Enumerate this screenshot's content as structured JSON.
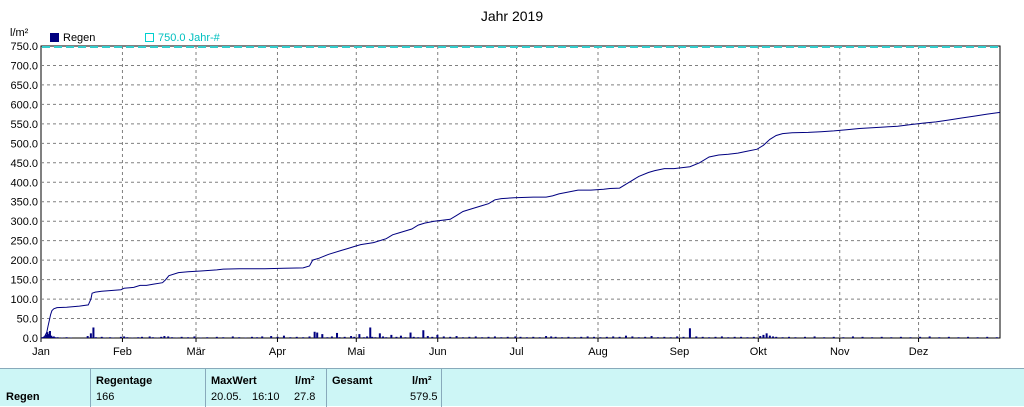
{
  "chart_data": {
    "type": "bar+line",
    "title": "Jahr 2019",
    "ylabel": "l/m²",
    "ylim": [
      0,
      750
    ],
    "yticks": [
      "0.0",
      "50.0",
      "100.0",
      "150.0",
      "200.0",
      "250.0",
      "300.0",
      "350.0",
      "400.0",
      "450.0",
      "500.0",
      "550.0",
      "600.0",
      "650.0",
      "700.0",
      "750.0"
    ],
    "xlabels": [
      "Jan",
      "Feb",
      "Mär",
      "Apr",
      "Mai",
      "Jun",
      "Jul",
      "Aug",
      "Sep",
      "Okt",
      "Nov",
      "Dez"
    ],
    "month_lengths": [
      31,
      28,
      31,
      30,
      31,
      30,
      31,
      31,
      30,
      31,
      30,
      31
    ],
    "grid": true,
    "legend": [
      {
        "name": "Regen",
        "color": "#000080"
      },
      {
        "name": "750.0 Jahr-#",
        "color": "#00d0d0"
      }
    ],
    "reference_line": {
      "value": 750,
      "color": "#33cccc"
    },
    "cumulative": [
      [
        0,
        0
      ],
      [
        5,
        2
      ],
      [
        9,
        15
      ],
      [
        11,
        30
      ],
      [
        13,
        45
      ],
      [
        15,
        60
      ],
      [
        17,
        70
      ],
      [
        20,
        75
      ],
      [
        25,
        78
      ],
      [
        40,
        79
      ],
      [
        60,
        82
      ],
      [
        74,
        85
      ],
      [
        78,
        100
      ],
      [
        80,
        115
      ],
      [
        85,
        118
      ],
      [
        95,
        120
      ],
      [
        110,
        122
      ],
      [
        125,
        124
      ],
      [
        130,
        128
      ],
      [
        145,
        130
      ],
      [
        155,
        135
      ],
      [
        165,
        135
      ],
      [
        175,
        138
      ],
      [
        190,
        142
      ],
      [
        195,
        150
      ],
      [
        200,
        160
      ],
      [
        215,
        168
      ],
      [
        230,
        170
      ],
      [
        250,
        172
      ],
      [
        275,
        175
      ],
      [
        285,
        177
      ],
      [
        310,
        178
      ],
      [
        350,
        178
      ],
      [
        380,
        179
      ],
      [
        410,
        180
      ],
      [
        420,
        185
      ],
      [
        425,
        200
      ],
      [
        435,
        205
      ],
      [
        450,
        215
      ],
      [
        470,
        225
      ],
      [
        480,
        230
      ],
      [
        490,
        235
      ],
      [
        500,
        240
      ],
      [
        520,
        245
      ],
      [
        540,
        255
      ],
      [
        550,
        265
      ],
      [
        560,
        270
      ],
      [
        580,
        280
      ],
      [
        590,
        290
      ],
      [
        600,
        295
      ],
      [
        615,
        300
      ],
      [
        640,
        305
      ],
      [
        650,
        315
      ],
      [
        660,
        325
      ],
      [
        670,
        330
      ],
      [
        690,
        340
      ],
      [
        700,
        345
      ],
      [
        710,
        355
      ],
      [
        720,
        358
      ],
      [
        740,
        360
      ],
      [
        770,
        362
      ],
      [
        790,
        362
      ],
      [
        800,
        365
      ],
      [
        810,
        370
      ],
      [
        825,
        375
      ],
      [
        840,
        380
      ],
      [
        860,
        380
      ],
      [
        880,
        382
      ],
      [
        890,
        384
      ],
      [
        905,
        385
      ],
      [
        915,
        395
      ],
      [
        925,
        405
      ],
      [
        935,
        415
      ],
      [
        950,
        425
      ],
      [
        960,
        430
      ],
      [
        975,
        435
      ],
      [
        990,
        435
      ],
      [
        1005,
        438
      ],
      [
        1015,
        440
      ],
      [
        1030,
        450
      ],
      [
        1045,
        465
      ],
      [
        1060,
        470
      ],
      [
        1075,
        472
      ],
      [
        1090,
        475
      ],
      [
        1105,
        480
      ],
      [
        1120,
        485
      ],
      [
        1130,
        495
      ],
      [
        1140,
        510
      ],
      [
        1150,
        520
      ],
      [
        1160,
        525
      ],
      [
        1175,
        527
      ],
      [
        1200,
        528
      ],
      [
        1220,
        530
      ],
      [
        1240,
        532
      ],
      [
        1260,
        535
      ],
      [
        1280,
        538
      ],
      [
        1300,
        540
      ],
      [
        1320,
        542
      ],
      [
        1340,
        544
      ],
      [
        1360,
        548
      ],
      [
        1380,
        552
      ],
      [
        1400,
        555
      ],
      [
        1420,
        560
      ],
      [
        1440,
        565
      ],
      [
        1460,
        570
      ],
      [
        1480,
        575
      ],
      [
        1500,
        579.5
      ]
    ],
    "daily_bars": [
      [
        5,
        4
      ],
      [
        8,
        8
      ],
      [
        10,
        15
      ],
      [
        12,
        10
      ],
      [
        14,
        18
      ],
      [
        16,
        6
      ],
      [
        18,
        3
      ],
      [
        20,
        4
      ],
      [
        22,
        2
      ],
      [
        26,
        2
      ],
      [
        33,
        1
      ],
      [
        40,
        2
      ],
      [
        47,
        1
      ],
      [
        73,
        5
      ],
      [
        78,
        12
      ],
      [
        82,
        27
      ],
      [
        86,
        2
      ],
      [
        95,
        3
      ],
      [
        100,
        1
      ],
      [
        108,
        2
      ],
      [
        113,
        1
      ],
      [
        125,
        3
      ],
      [
        130,
        4
      ],
      [
        135,
        2
      ],
      [
        143,
        1
      ],
      [
        152,
        2
      ],
      [
        158,
        3
      ],
      [
        170,
        4
      ],
      [
        175,
        2
      ],
      [
        182,
        1
      ],
      [
        188,
        3
      ],
      [
        193,
        5
      ],
      [
        199,
        4
      ],
      [
        205,
        2
      ],
      [
        212,
        1
      ],
      [
        220,
        3
      ],
      [
        230,
        2
      ],
      [
        240,
        4
      ],
      [
        250,
        1
      ],
      [
        260,
        2
      ],
      [
        275,
        3
      ],
      [
        285,
        2
      ],
      [
        300,
        4
      ],
      [
        310,
        2
      ],
      [
        320,
        1
      ],
      [
        330,
        3
      ],
      [
        338,
        2
      ],
      [
        346,
        4
      ],
      [
        360,
        5
      ],
      [
        370,
        3
      ],
      [
        380,
        6
      ],
      [
        390,
        2
      ],
      [
        400,
        3
      ],
      [
        410,
        2
      ],
      [
        420,
        4
      ],
      [
        428,
        16
      ],
      [
        432,
        14
      ],
      [
        440,
        10
      ],
      [
        448,
        2
      ],
      [
        455,
        4
      ],
      [
        463,
        13
      ],
      [
        467,
        2
      ],
      [
        475,
        3
      ],
      [
        485,
        5
      ],
      [
        490,
        3
      ],
      [
        498,
        10
      ],
      [
        505,
        2
      ],
      [
        510,
        4
      ],
      [
        515,
        27
      ],
      [
        518,
        3
      ],
      [
        523,
        2
      ],
      [
        530,
        12
      ],
      [
        535,
        4
      ],
      [
        540,
        2
      ],
      [
        548,
        8
      ],
      [
        556,
        3
      ],
      [
        563,
        6
      ],
      [
        570,
        2
      ],
      [
        578,
        14
      ],
      [
        583,
        3
      ],
      [
        590,
        2
      ],
      [
        598,
        20
      ],
      [
        605,
        5
      ],
      [
        612,
        3
      ],
      [
        620,
        8
      ],
      [
        630,
        4
      ],
      [
        640,
        3
      ],
      [
        650,
        5
      ],
      [
        660,
        2
      ],
      [
        670,
        3
      ],
      [
        680,
        4
      ],
      [
        690,
        2
      ],
      [
        700,
        3
      ],
      [
        710,
        4
      ],
      [
        720,
        2
      ],
      [
        730,
        3
      ],
      [
        742,
        4
      ],
      [
        750,
        3
      ],
      [
        760,
        2
      ],
      [
        770,
        3
      ],
      [
        780,
        2
      ],
      [
        790,
        5
      ],
      [
        798,
        4
      ],
      [
        805,
        3
      ],
      [
        815,
        2
      ],
      [
        825,
        3
      ],
      [
        835,
        2
      ],
      [
        845,
        3
      ],
      [
        855,
        4
      ],
      [
        865,
        3
      ],
      [
        875,
        2
      ],
      [
        885,
        3
      ],
      [
        895,
        4
      ],
      [
        905,
        3
      ],
      [
        915,
        6
      ],
      [
        925,
        4
      ],
      [
        935,
        2
      ],
      [
        945,
        3
      ],
      [
        955,
        5
      ],
      [
        965,
        2
      ],
      [
        975,
        3
      ],
      [
        985,
        2
      ],
      [
        995,
        4
      ],
      [
        1005,
        3
      ],
      [
        1015,
        25
      ],
      [
        1025,
        4
      ],
      [
        1035,
        3
      ],
      [
        1045,
        2
      ],
      [
        1055,
        3
      ],
      [
        1065,
        4
      ],
      [
        1075,
        2
      ],
      [
        1085,
        3
      ],
      [
        1095,
        3
      ],
      [
        1105,
        2
      ],
      [
        1115,
        3
      ],
      [
        1125,
        5
      ],
      [
        1130,
        8
      ],
      [
        1135,
        12
      ],
      [
        1140,
        6
      ],
      [
        1145,
        4
      ],
      [
        1150,
        3
      ],
      [
        1160,
        2
      ],
      [
        1170,
        3
      ],
      [
        1180,
        2
      ],
      [
        1195,
        3
      ],
      [
        1210,
        4
      ],
      [
        1225,
        2
      ],
      [
        1240,
        3
      ],
      [
        1255,
        2
      ],
      [
        1270,
        4
      ],
      [
        1285,
        3
      ],
      [
        1300,
        2
      ],
      [
        1315,
        3
      ],
      [
        1330,
        2
      ],
      [
        1345,
        3
      ],
      [
        1360,
        2
      ],
      [
        1375,
        3
      ],
      [
        1390,
        4
      ],
      [
        1405,
        2
      ],
      [
        1420,
        3
      ],
      [
        1435,
        2
      ],
      [
        1450,
        3
      ],
      [
        1465,
        2
      ],
      [
        1480,
        3
      ],
      [
        1495,
        2
      ]
    ],
    "x_domain": [
      0,
      1500
    ]
  },
  "summary": {
    "row_label": "Regen",
    "regentage_label": "Regentage",
    "regentage_value": "166",
    "maxwert_label": "MaxWert",
    "maxwert_unit": "l/m²",
    "maxwert_date": "20.05.",
    "maxwert_time": "16:10",
    "maxwert_value": "27.8",
    "gesamt_label": "Gesamt",
    "gesamt_unit": "l/m²",
    "gesamt_value": "579.5"
  }
}
